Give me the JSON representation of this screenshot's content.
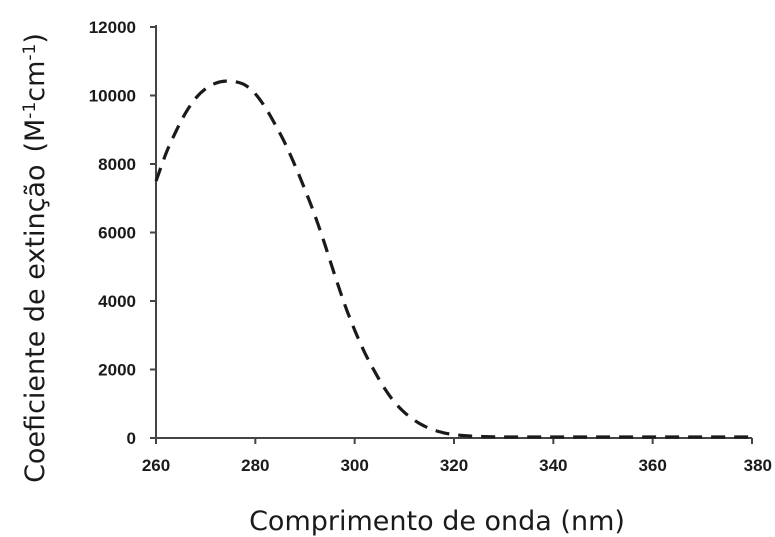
{
  "chart_data": {
    "type": "line",
    "title": "",
    "xlabel": "Comprimento de onda (nm)",
    "ylabel_prefix": "Coeficiente de extinção",
    "ylabel_unit": {
      "open": "(M",
      "exp1": "-1",
      "mid": "cm",
      "exp2": "-1",
      "close": ")"
    },
    "xlim": [
      260,
      380
    ],
    "ylim": [
      0,
      12000
    ],
    "x_ticks": [
      "260",
      "280",
      "300",
      "320",
      "340",
      "360",
      "380"
    ],
    "y_ticks": [
      "0",
      "2000",
      "4000",
      "6000",
      "8000",
      "10000",
      "12000"
    ],
    "grid": false,
    "legend": "none",
    "series": [
      {
        "line_style": "dashed",
        "color": "#1a1a1a",
        "x": [
          260,
          262,
          264,
          266,
          268,
          270,
          272,
          274,
          276,
          278,
          280,
          282,
          284,
          286,
          288,
          290,
          292,
          294,
          296,
          298,
          300,
          302,
          304,
          306,
          308,
          310,
          312,
          314,
          316,
          318,
          320,
          322,
          324,
          326,
          328,
          330,
          335,
          340,
          345,
          350,
          360,
          370,
          380
        ],
        "y": [
          7500,
          8300,
          8950,
          9500,
          9920,
          10200,
          10360,
          10420,
          10400,
          10300,
          10050,
          9650,
          9150,
          8600,
          7950,
          7250,
          6500,
          5650,
          4750,
          3900,
          3150,
          2500,
          1950,
          1450,
          1050,
          750,
          520,
          350,
          230,
          150,
          100,
          70,
          50,
          40,
          35,
          30,
          30,
          30,
          30,
          30,
          30,
          30,
          30
        ]
      }
    ]
  }
}
